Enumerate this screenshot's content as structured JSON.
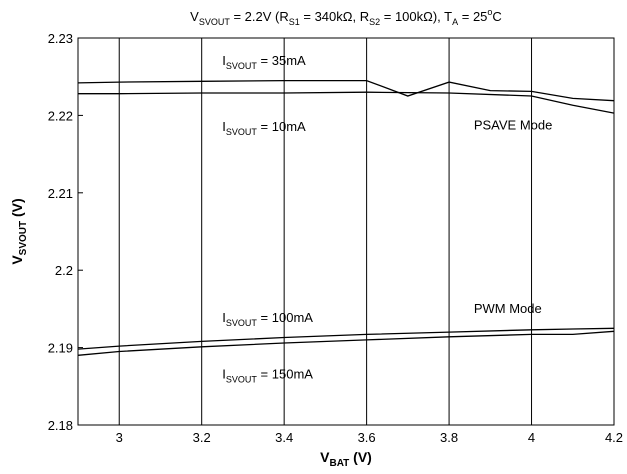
{
  "chart_data": {
    "type": "line",
    "title": "V_SVOUT = 2.2V (R_S1 = 340kΩ, R_S2 = 100kΩ), T_A = 25°C",
    "title_parts": [
      {
        "t": "V",
        "s": "n"
      },
      {
        "t": "SVOUT",
        "s": "sub"
      },
      {
        "t": " = 2.2V  (R",
        "s": "n"
      },
      {
        "t": "S1",
        "s": "sub"
      },
      {
        "t": " = 340kΩ,  R",
        "s": "n"
      },
      {
        "t": "S2",
        "s": "sub"
      },
      {
        "t": " = 100kΩ),  T",
        "s": "n"
      },
      {
        "t": "A",
        "s": "sub"
      },
      {
        "t": " = 25",
        "s": "n"
      },
      {
        "t": "o",
        "s": "sup"
      },
      {
        "t": "C",
        "s": "n"
      }
    ],
    "xlabel": "V_BAT (V)",
    "xlabel_parts": [
      {
        "t": "V",
        "s": "n"
      },
      {
        "t": "BAT",
        "s": "sub"
      },
      {
        "t": " (V)",
        "s": "n"
      }
    ],
    "ylabel": "V_SVOUT (V)",
    "ylabel_parts": [
      {
        "t": "V",
        "s": "n"
      },
      {
        "t": "SVOUT",
        "s": "sub"
      },
      {
        "t": " (V)",
        "s": "n"
      }
    ],
    "xlim": [
      2.9,
      4.2
    ],
    "ylim": [
      2.18,
      2.23
    ],
    "x_ticks": [
      3,
      3.2,
      3.4,
      3.6,
      3.8,
      4,
      4.2
    ],
    "x_tick_labels": [
      "3",
      "3.2",
      "3.4",
      "3.6",
      "3.8",
      "4",
      "4.2"
    ],
    "y_ticks": [
      2.18,
      2.19,
      2.2,
      2.21,
      2.22,
      2.23
    ],
    "y_tick_labels": [
      "2.18",
      "2.19",
      "2.2",
      "2.21",
      "2.22",
      "2.23"
    ],
    "grid": "vertical",
    "series": [
      {
        "name": "I_SVOUT = 35mA",
        "x": [
          2.9,
          3.0,
          3.2,
          3.4,
          3.6,
          3.7,
          3.8,
          3.9,
          4.0,
          4.1,
          4.2
        ],
        "y": [
          2.2242,
          2.2243,
          2.2244,
          2.2245,
          2.2245,
          2.2225,
          2.2243,
          2.2232,
          2.2231,
          2.2222,
          2.2219
        ]
      },
      {
        "name": "I_SVOUT = 10mA",
        "x": [
          2.9,
          3.0,
          3.2,
          3.4,
          3.6,
          3.8,
          4.0,
          4.1,
          4.2
        ],
        "y": [
          2.2228,
          2.2228,
          2.2229,
          2.2229,
          2.223,
          2.2229,
          2.2225,
          2.2213,
          2.2203
        ]
      },
      {
        "name": "I_SVOUT = 100mA",
        "x": [
          2.9,
          3.0,
          3.2,
          3.4,
          3.6,
          3.8,
          4.0,
          4.1,
          4.2
        ],
        "y": [
          2.1898,
          2.1902,
          2.1908,
          2.1913,
          2.1917,
          2.192,
          2.1923,
          2.1924,
          2.1925
        ]
      },
      {
        "name": "I_SVOUT = 150mA",
        "x": [
          2.9,
          3.0,
          3.2,
          3.4,
          3.6,
          3.8,
          4.0,
          4.1,
          4.2
        ],
        "y": [
          2.189,
          2.1895,
          2.1901,
          2.1906,
          2.191,
          2.1914,
          2.1917,
          2.1917,
          2.1921
        ]
      }
    ],
    "annotations": [
      {
        "id": "i35",
        "text": "I_SVOUT = 35mA",
        "parts": [
          {
            "t": "I",
            "s": "n"
          },
          {
            "t": "SVOUT",
            "s": "sub"
          },
          {
            "t": " = 35mA",
            "s": "n"
          }
        ],
        "x": 3.25,
        "y": 2.2265
      },
      {
        "id": "i10",
        "text": "I_SVOUT = 10mA",
        "parts": [
          {
            "t": "I",
            "s": "n"
          },
          {
            "t": "SVOUT",
            "s": "sub"
          },
          {
            "t": " = 10mA",
            "s": "n"
          }
        ],
        "x": 3.25,
        "y": 2.218
      },
      {
        "id": "psave",
        "text": "PSAVE Mode",
        "parts": [
          {
            "t": "PSAVE Mode",
            "s": "n"
          }
        ],
        "x": 3.86,
        "y": 2.2182
      },
      {
        "id": "pwm",
        "text": "PWM Mode",
        "parts": [
          {
            "t": "PWM Mode",
            "s": "n"
          }
        ],
        "x": 3.86,
        "y": 2.1945
      },
      {
        "id": "i100",
        "text": "I_SVOUT = 100mA",
        "parts": [
          {
            "t": "I",
            "s": "n"
          },
          {
            "t": "SVOUT",
            "s": "sub"
          },
          {
            "t": " = 100mA",
            "s": "n"
          }
        ],
        "x": 3.25,
        "y": 2.1933
      },
      {
        "id": "i150",
        "text": "I_SVOUT = 150mA",
        "parts": [
          {
            "t": "I",
            "s": "n"
          },
          {
            "t": "SVOUT",
            "s": "sub"
          },
          {
            "t": " = 150mA",
            "s": "n"
          }
        ],
        "x": 3.25,
        "y": 2.186
      }
    ]
  }
}
